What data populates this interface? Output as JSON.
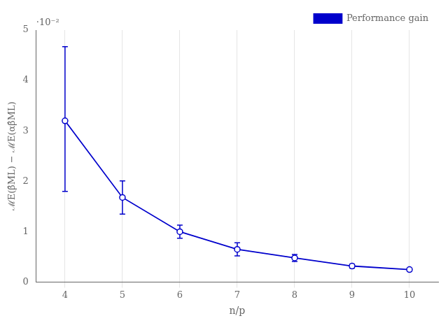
{
  "chart_data": {
    "type": "line",
    "xlabel": "n/p",
    "ylabel": "ℳE(β̂ML) − ℳE(αβ̂ML)",
    "annotations": [
      "·10⁻²"
    ],
    "x": [
      4,
      5,
      6,
      7,
      8,
      9,
      10
    ],
    "series": [
      {
        "name": "Performance gain",
        "color": "#0000CC",
        "marker": "circle",
        "values": [
          0.032,
          0.0168,
          0.01,
          0.0065,
          0.0048,
          0.0032,
          0.0025
        ],
        "yerr_upper": [
          0.0147,
          0.0033,
          0.0013,
          0.0013,
          0.0007,
          0.0004,
          0.0003
        ],
        "yerr_lower": [
          0.014,
          0.0033,
          0.0013,
          0.0013,
          0.0007,
          0.0004,
          0.0003
        ]
      }
    ],
    "xlim": [
      3.5,
      10.5
    ],
    "xticks": [
      4,
      5,
      6,
      7,
      8,
      9,
      10
    ],
    "ylim": [
      0,
      0.05
    ],
    "yticks": [
      0,
      {
        "value": 0.01,
        "label": "1"
      },
      {
        "value": 0.02,
        "label": "2"
      },
      {
        "value": 0.03,
        "label": "3"
      },
      {
        "value": 0.04,
        "label": "4"
      },
      {
        "value": 0.05,
        "label": "5"
      }
    ],
    "grid": "x",
    "legend": "upper right"
  }
}
